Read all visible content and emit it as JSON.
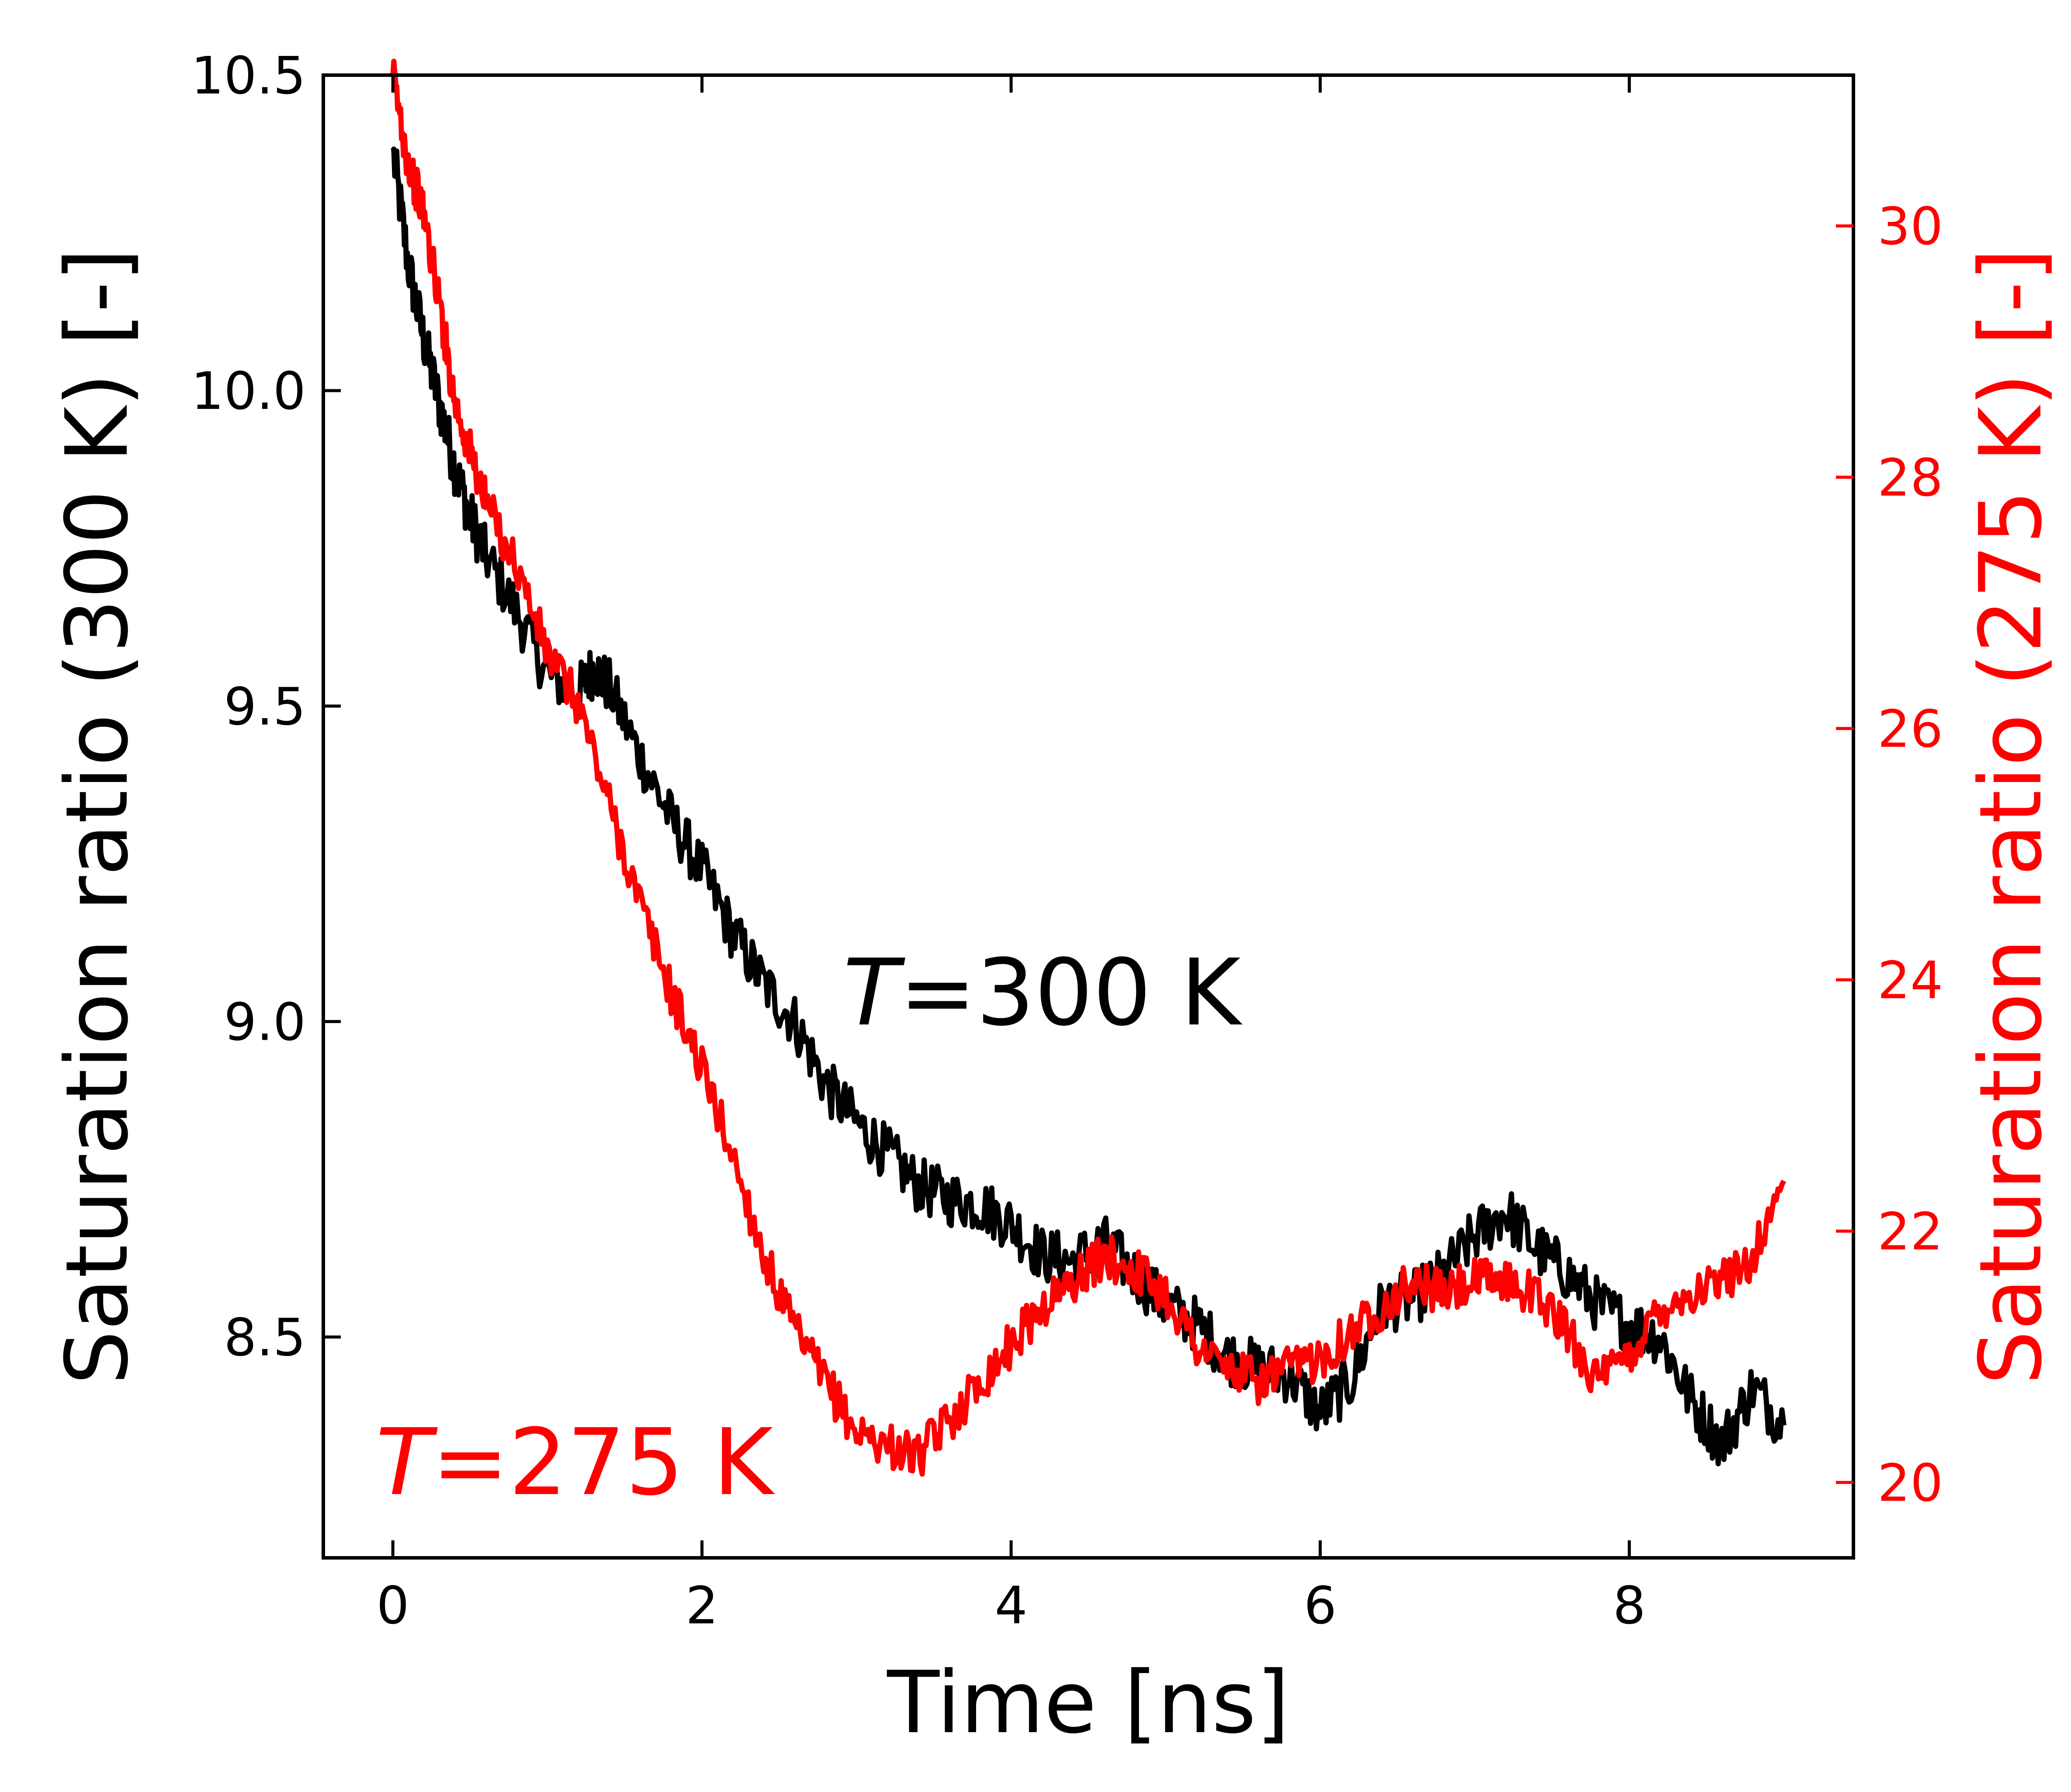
{
  "chart_data": {
    "type": "line",
    "xlabel": "Time [ns]",
    "ylabel_left": "Saturation ratio (300 K) [-]",
    "ylabel_right": "Saturation ratio (275 K) [-]",
    "xlim": [
      -0.45,
      9.45
    ],
    "ylim_left": [
      8.15,
      10.5
    ],
    "ylim_right": [
      19.4,
      31.2
    ],
    "xticks": [
      0,
      2,
      4,
      6,
      8
    ],
    "xtick_labels": [
      "0",
      "2",
      "4",
      "6",
      "8"
    ],
    "yticks_left": [
      8.5,
      9.0,
      9.5,
      10.0,
      10.5
    ],
    "ytick_labels_left": [
      "8.5",
      "9.0",
      "9.5",
      "10.0",
      "10.5"
    ],
    "yticks_right": [
      20,
      22,
      24,
      26,
      28,
      30
    ],
    "ytick_labels_right": [
      "20",
      "22",
      "24",
      "26",
      "28",
      "30"
    ],
    "grid": false,
    "colors": {
      "left_axis": "#000000",
      "right_axis": "#ff0000"
    },
    "annotations": [
      {
        "italic": "T",
        "rest": "=300 K",
        "color": "#000000"
      },
      {
        "italic": "T",
        "rest": "=275 K",
        "color": "#ff0000"
      }
    ],
    "series": [
      {
        "axis": "left",
        "color": "#000000",
        "x": [
          0,
          0.1,
          0.2,
          0.3,
          0.4,
          0.5,
          0.6,
          0.8,
          1.0,
          1.2,
          1.3,
          1.4,
          1.6,
          1.8,
          2.0,
          2.2,
          2.4,
          2.6,
          2.8,
          3.0,
          3.2,
          3.4,
          3.6,
          3.8,
          4.0,
          4.2,
          4.4,
          4.6,
          4.8,
          5.0,
          5.2,
          5.4,
          5.6,
          5.8,
          6.0,
          6.2,
          6.4,
          6.6,
          6.8,
          7.0,
          7.2,
          7.4,
          7.6,
          7.8,
          8.0,
          8.2,
          8.4,
          8.6,
          8.8,
          9.0
        ],
        "y": [
          10.38,
          10.2,
          10.08,
          9.98,
          9.88,
          9.8,
          9.74,
          9.65,
          9.55,
          9.52,
          9.56,
          9.53,
          9.42,
          9.32,
          9.24,
          9.14,
          9.06,
          9.0,
          8.9,
          8.84,
          8.79,
          8.74,
          8.72,
          8.71,
          8.68,
          8.63,
          8.62,
          8.65,
          8.6,
          8.55,
          8.52,
          8.47,
          8.45,
          8.44,
          8.38,
          8.43,
          8.55,
          8.56,
          8.6,
          8.66,
          8.7,
          8.64,
          8.6,
          8.55,
          8.52,
          8.5,
          8.4,
          8.33,
          8.42,
          8.36
        ]
      },
      {
        "axis": "right",
        "color": "#ff0000",
        "x": [
          0,
          0.1,
          0.2,
          0.3,
          0.4,
          0.5,
          0.6,
          0.8,
          1.0,
          1.2,
          1.4,
          1.6,
          1.8,
          2.0,
          2.2,
          2.4,
          2.6,
          2.8,
          3.0,
          3.2,
          3.4,
          3.6,
          3.8,
          4.0,
          4.2,
          4.4,
          4.6,
          4.8,
          5.0,
          5.2,
          5.4,
          5.6,
          5.8,
          6.0,
          6.2,
          6.4,
          6.6,
          6.8,
          7.0,
          7.2,
          7.4,
          7.6,
          7.8,
          8.0,
          8.2,
          8.4,
          8.6,
          8.8,
          9.0
        ],
        "y": [
          31.2,
          30.5,
          30.1,
          29.4,
          28.6,
          28.2,
          27.8,
          27.3,
          26.6,
          26.2,
          25.4,
          24.6,
          23.9,
          23.3,
          22.6,
          21.8,
          21.2,
          20.8,
          20.4,
          20.3,
          20.2,
          20.5,
          20.8,
          21.1,
          21.4,
          21.6,
          21.8,
          21.7,
          21.5,
          21.1,
          20.9,
          20.8,
          20.9,
          21.0,
          21.2,
          21.4,
          21.6,
          21.5,
          21.6,
          21.6,
          21.5,
          21.2,
          20.8,
          21.0,
          21.4,
          21.5,
          21.6,
          21.8,
          22.4
        ]
      }
    ]
  }
}
